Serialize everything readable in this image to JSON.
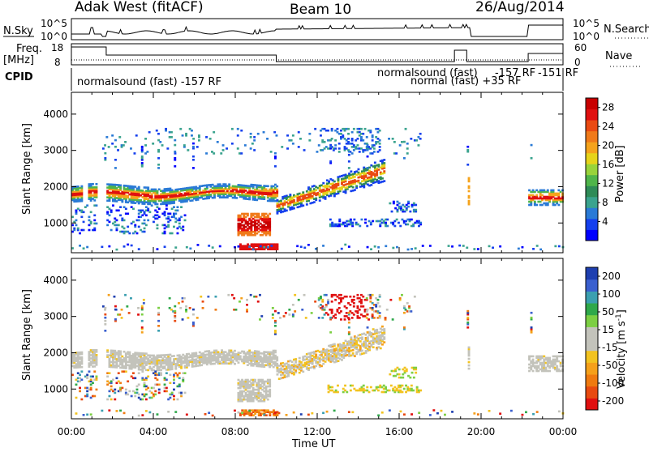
{
  "header": {
    "station": "Adak West (fitACF)",
    "beam": "Beam 10",
    "date": "26/Aug/2014"
  },
  "top_panels": {
    "nsky_label": "N.Sky",
    "nsky_ticks": [
      "10^5",
      "10^0"
    ],
    "nsearch_label": "N.Search",
    "nsearch_ticks": [
      "10^5",
      "10^0"
    ],
    "freq_label": "Freq.",
    "freq_unit": "[MHz]",
    "freq_ticks": [
      "18",
      "8"
    ],
    "nave_label": "Nave",
    "nave_ticks": [
      "60",
      "0"
    ],
    "cpid_label": "CPID",
    "cpid_texts": [
      "normalsound (fast) -157 RF",
      "normalsound (fast)",
      "normal (fast) +35 RF",
      "-157 RF",
      "-151 RF"
    ]
  },
  "chart_data": [
    {
      "type": "heatmap",
      "title": "",
      "xlabel": "Time UT",
      "ylabel": "Slant Range [km]",
      "xlim": [
        0,
        24
      ],
      "ylim": [
        180,
        4600
      ],
      "x_ticks": [
        "00:00",
        "04:00",
        "08:00",
        "12:00",
        "16:00",
        "20:00",
        "00:00"
      ],
      "y_ticks": [
        1000,
        2000,
        3000,
        4000
      ],
      "colorbar": {
        "label": "Power [dB]",
        "ticks": [
          4,
          8,
          12,
          16,
          20,
          24,
          28
        ],
        "range": [
          0,
          30
        ],
        "colors": [
          "#0000ff",
          "#1540ee",
          "#2a7ad6",
          "#3aa38e",
          "#2e8b57",
          "#4fb54a",
          "#98d33a",
          "#e6d31a",
          "#f5a31c",
          "#f07a1a",
          "#ea4a12",
          "#e01010",
          "#c80000"
        ]
      },
      "features": [
        {
          "name": "main band",
          "time_range": [
            0,
            10
          ],
          "range_km": [
            1600,
            2000
          ]
        },
        {
          "name": "rising band",
          "time_range": [
            10,
            15.2
          ],
          "range_km": [
            1400,
            2600
          ]
        },
        {
          "name": "high-power patch",
          "time_range": [
            8.1,
            9.6
          ],
          "range_km": [
            700,
            1200
          ]
        },
        {
          "name": "near-range echoes",
          "time_range": [
            8.3,
            10
          ],
          "range_km": [
            300,
            420
          ]
        },
        {
          "name": "late band",
          "time_range": [
            22.3,
            24
          ],
          "range_km": [
            1500,
            1900
          ]
        }
      ]
    },
    {
      "type": "heatmap",
      "title": "",
      "xlabel": "Time UT",
      "ylabel": "Slant Range [km]",
      "xlim": [
        0,
        24
      ],
      "ylim": [
        180,
        4600
      ],
      "x_ticks": [
        "00:00",
        "04:00",
        "08:00",
        "12:00",
        "16:00",
        "20:00",
        "00:00"
      ],
      "y_ticks": [
        1000,
        2000,
        3000,
        4000
      ],
      "colorbar": {
        "label": "Velocity [m s",
        "label_sup": "-1",
        "label_end": "]",
        "ticks": [
          200,
          100,
          50,
          15,
          -15,
          -50,
          -100,
          -200
        ],
        "colors": [
          "#1e3fb0",
          "#3a5fcf",
          "#3b9fb0",
          "#2fa84a",
          "#7ccf43",
          "#c3c3bb",
          "#c3c3bb",
          "#f2c320",
          "#f5a01a",
          "#ef7a10",
          "#e84a10",
          "#e01010"
        ]
      },
      "features": [
        {
          "name": "grey low-velocity band",
          "time_range": [
            0,
            10
          ],
          "range_km": [
            1600,
            2000
          ]
        },
        {
          "name": "negative velocity patch",
          "time_range": [
            12.8,
            14.2
          ],
          "range_km": [
            3200,
            3500
          ]
        },
        {
          "name": "late band",
          "time_range": [
            22.3,
            24
          ],
          "range_km": [
            1500,
            1900
          ]
        }
      ]
    }
  ]
}
